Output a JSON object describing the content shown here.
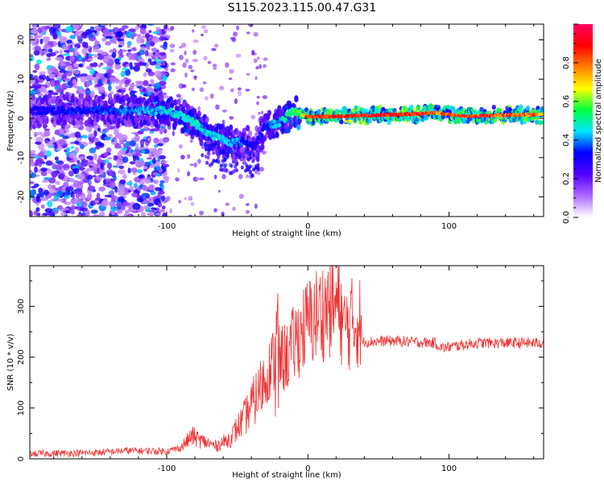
{
  "title": "S115.2023.115.00.47.G31",
  "chart_data": [
    {
      "type": "heatmap",
      "xlabel": "Height of straight line (km)",
      "ylabel": "Frequency (Hz)",
      "xlim": [
        -197,
        167
      ],
      "ylim": [
        -25,
        24
      ],
      "xticks": [
        -100,
        0,
        100
      ],
      "xtick_labels": [
        "-100",
        "0",
        "100"
      ],
      "yticks": [
        -20,
        -10,
        0,
        10,
        20
      ],
      "ytick_labels": [
        "-20",
        "-10",
        "0",
        "10",
        "20"
      ],
      "colorbar": {
        "label": "Normalized spectral amplitude",
        "range": [
          0,
          1
        ],
        "ticks": [
          0.0,
          0.2,
          0.4,
          0.6,
          0.8
        ],
        "tick_labels": [
          "0.0",
          "0.2",
          "0.4",
          "0.6",
          "0.8"
        ],
        "colors": [
          "#ffffff",
          "#b068ff",
          "#5500ff",
          "#0000ff",
          "#00e5ff",
          "#00ff40",
          "#ffff00",
          "#ff8000",
          "#ff0000",
          "#ff0060"
        ]
      },
      "ridge": {
        "x": [
          -195,
          -150,
          -100,
          -85,
          -70,
          -55,
          -45,
          -38,
          -30,
          -20,
          -10,
          -5,
          0,
          20,
          50,
          80,
          90,
          110,
          130,
          167
        ],
        "y": [
          2,
          2,
          2,
          0,
          -4,
          -6,
          -6,
          -7,
          -2,
          -1,
          2,
          1,
          0.5,
          0.5,
          0.8,
          1.2,
          1.5,
          0.5,
          0.8,
          1
        ],
        "amplitude": [
          0.3,
          0.35,
          0.45,
          0.5,
          0.45,
          0.45,
          0.35,
          0.3,
          0.35,
          0.45,
          0.55,
          0.6,
          0.85,
          0.9,
          0.9,
          0.9,
          0.8,
          0.85,
          0.85,
          0.8
        ]
      },
      "noise_region_x": [
        -197,
        -100
      ]
    },
    {
      "type": "line",
      "xlabel": "Height of straight line (km)",
      "ylabel": "SNR (10 * v/v)",
      "xlim": [
        -197,
        167
      ],
      "ylim": [
        0,
        380
      ],
      "xticks": [
        -100,
        0,
        100
      ],
      "xtick_labels": [
        "-100",
        "0",
        "100"
      ],
      "yticks": [
        0,
        100,
        200,
        300
      ],
      "ytick_labels": [
        "0",
        "100",
        "200",
        "300"
      ],
      "color": "#ee3333",
      "trend": {
        "x": [
          -197,
          -150,
          -130,
          -100,
          -90,
          -82,
          -75,
          -65,
          -55,
          -45,
          -35,
          -25,
          -15,
          -5,
          5,
          15,
          23,
          25,
          30,
          37,
          38,
          60,
          90,
          95,
          120,
          167
        ],
        "y": [
          10,
          12,
          16,
          15,
          22,
          45,
          35,
          25,
          40,
          80,
          130,
          190,
          200,
          250,
          280,
          300,
          300,
          255,
          265,
          270,
          230,
          232,
          228,
          218,
          228,
          228
        ]
      }
    }
  ]
}
